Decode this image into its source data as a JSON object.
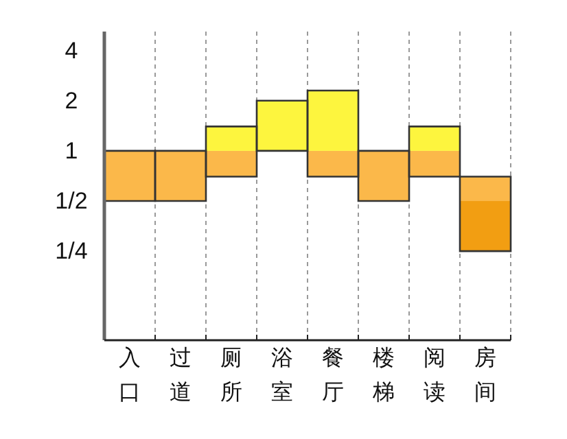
{
  "chart_data": {
    "type": "bar",
    "categories": [
      "入口",
      "过道",
      "厕所",
      "浴室",
      "餐厅",
      "楼梯",
      "阅读",
      "房间"
    ],
    "series": [
      {
        "color": "#f29e12",
        "base": [
          null,
          null,
          null,
          null,
          null,
          null,
          null,
          0.25
        ],
        "values": [
          null,
          null,
          null,
          null,
          null,
          null,
          null,
          0.25
        ]
      },
      {
        "color": "#fbb84a",
        "base": [
          0.5,
          0.5,
          0.7,
          null,
          0.7,
          0.5,
          0.7,
          0.5
        ],
        "values": [
          0.5,
          0.5,
          0.3,
          null,
          0.3,
          0.5,
          0.3,
          0.2
        ]
      },
      {
        "color": "#fdf53e",
        "base": [
          null,
          null,
          1,
          1,
          1,
          null,
          1,
          null
        ],
        "values": [
          null,
          null,
          0.4,
          1,
          1.3,
          null,
          0.4,
          null
        ]
      }
    ],
    "log": true,
    "ylim": [
      0.073,
      5.2
    ],
    "yticks": [
      {
        "value": 0.25,
        "label": "1/4"
      },
      {
        "value": 0.5,
        "label": "1/2"
      },
      1,
      2,
      4
    ],
    "grid": "x"
  }
}
